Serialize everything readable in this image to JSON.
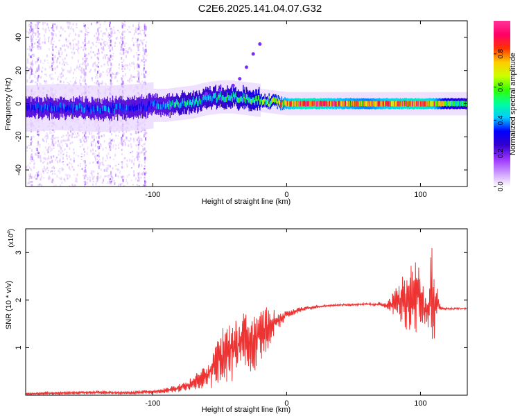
{
  "title": "C2E6.2025.141.04.07.G32",
  "chart_data": [
    {
      "type": "heatmap",
      "xlabel": "Height of straight line (km)",
      "ylabel": "Frequency (Hz)",
      "xlim": [
        -195,
        135
      ],
      "ylim": [
        -50,
        50
      ],
      "xticks": [
        -100,
        0,
        100
      ],
      "yticks": [
        -40,
        -20,
        0,
        20,
        40
      ],
      "colorbar": {
        "label": "Normalized spectral amplitude",
        "range": [
          0,
          1
        ],
        "ticks": [
          0.0,
          0.2,
          0.4,
          0.6,
          0.8
        ],
        "colors": [
          "#ffffff",
          "#cc99ff",
          "#9933ff",
          "#3300cc",
          "#0000ff",
          "#00ccff",
          "#00ff99",
          "#33ff00",
          "#ccff00",
          "#ffcc00",
          "#ff3300",
          "#ff0066",
          "#ff3399"
        ]
      },
      "ridge": [
        {
          "x": -195,
          "y": -3,
          "amp": 0.3
        },
        {
          "x": -170,
          "y": -2,
          "amp": 0.35
        },
        {
          "x": -150,
          "y": -3,
          "amp": 0.35
        },
        {
          "x": -130,
          "y": -3,
          "amp": 0.35
        },
        {
          "x": -110,
          "y": -2,
          "amp": 0.3
        },
        {
          "x": -100,
          "y": -1,
          "amp": 0.35
        },
        {
          "x": -90,
          "y": -1,
          "amp": 0.4
        },
        {
          "x": -80,
          "y": 0,
          "amp": 0.45
        },
        {
          "x": -70,
          "y": 1,
          "amp": 0.45
        },
        {
          "x": -60,
          "y": 3,
          "amp": 0.45
        },
        {
          "x": -50,
          "y": 4,
          "amp": 0.45
        },
        {
          "x": -40,
          "y": 4,
          "amp": 0.5
        },
        {
          "x": -30,
          "y": 3,
          "amp": 0.5
        },
        {
          "x": -20,
          "y": 2,
          "amp": 0.55
        },
        {
          "x": -10,
          "y": 1,
          "amp": 0.6
        },
        {
          "x": 0,
          "y": 0,
          "amp": 0.75
        },
        {
          "x": 10,
          "y": 0,
          "amp": 0.85
        },
        {
          "x": 20,
          "y": 0,
          "amp": 0.85
        },
        {
          "x": 40,
          "y": 0,
          "amp": 0.75
        },
        {
          "x": 60,
          "y": 0,
          "amp": 0.7
        },
        {
          "x": 80,
          "y": 0,
          "amp": 0.8
        },
        {
          "x": 100,
          "y": 0,
          "amp": 0.85
        },
        {
          "x": 110,
          "y": 0,
          "amp": 0.75
        },
        {
          "x": 120,
          "y": 0,
          "amp": 0.55
        },
        {
          "x": 135,
          "y": 0,
          "amp": 0.45
        }
      ],
      "upper_branch": [
        {
          "x": -60,
          "y": 6
        },
        {
          "x": -50,
          "y": 8
        },
        {
          "x": -40,
          "y": 11
        },
        {
          "x": -35,
          "y": 15
        },
        {
          "x": -30,
          "y": 22
        },
        {
          "x": -25,
          "y": 30
        },
        {
          "x": -20,
          "y": 36
        }
      ]
    },
    {
      "type": "line",
      "xlabel": "Height of straight line (km)",
      "ylabel": "SNR (10 * v/v)",
      "y_multiplier": "(x10",
      "y_multiplier_exp": "4",
      "y_multiplier_close": ")",
      "xlim": [
        -195,
        135
      ],
      "ylim": [
        0,
        3.5
      ],
      "xticks": [
        -100,
        0,
        100
      ],
      "yticks": [
        1,
        2,
        3
      ],
      "color": "#ee3333",
      "series": [
        {
          "x": [
            -195,
            -180,
            -160,
            -140,
            -120,
            -100,
            -90,
            -80,
            -70,
            -60,
            -55,
            -50,
            -45,
            -40,
            -35,
            -30,
            -25,
            -20,
            -15,
            -10,
            -5,
            0,
            10,
            20,
            30,
            40,
            50,
            60,
            65,
            70,
            75,
            80,
            85,
            90,
            95,
            100,
            105,
            108,
            110,
            112,
            115,
            120,
            130,
            135
          ],
          "y": [
            0.03,
            0.04,
            0.05,
            0.06,
            0.05,
            0.07,
            0.1,
            0.15,
            0.25,
            0.4,
            0.6,
            0.8,
            0.9,
            1.0,
            1.1,
            1.2,
            1.1,
            1.3,
            1.4,
            1.5,
            1.6,
            1.7,
            1.8,
            1.85,
            1.88,
            1.9,
            1.9,
            1.92,
            1.9,
            1.92,
            1.88,
            1.95,
            2.0,
            1.9,
            2.1,
            2.0,
            1.7,
            2.2,
            1.6,
            2.0,
            1.83,
            1.82,
            1.82,
            1.82
          ],
          "amp": [
            0.02,
            0.03,
            0.03,
            0.03,
            0.03,
            0.04,
            0.05,
            0.08,
            0.12,
            0.25,
            0.4,
            0.5,
            0.6,
            0.7,
            0.7,
            0.65,
            0.6,
            0.55,
            0.45,
            0.3,
            0.15,
            0.08,
            0.05,
            0.03,
            0.02,
            0.02,
            0.02,
            0.02,
            0.03,
            0.04,
            0.06,
            0.25,
            0.5,
            0.6,
            0.7,
            0.55,
            0.4,
            1.2,
            0.9,
            0.3,
            0.03,
            0.02,
            0.02,
            0.02
          ]
        }
      ]
    }
  ]
}
